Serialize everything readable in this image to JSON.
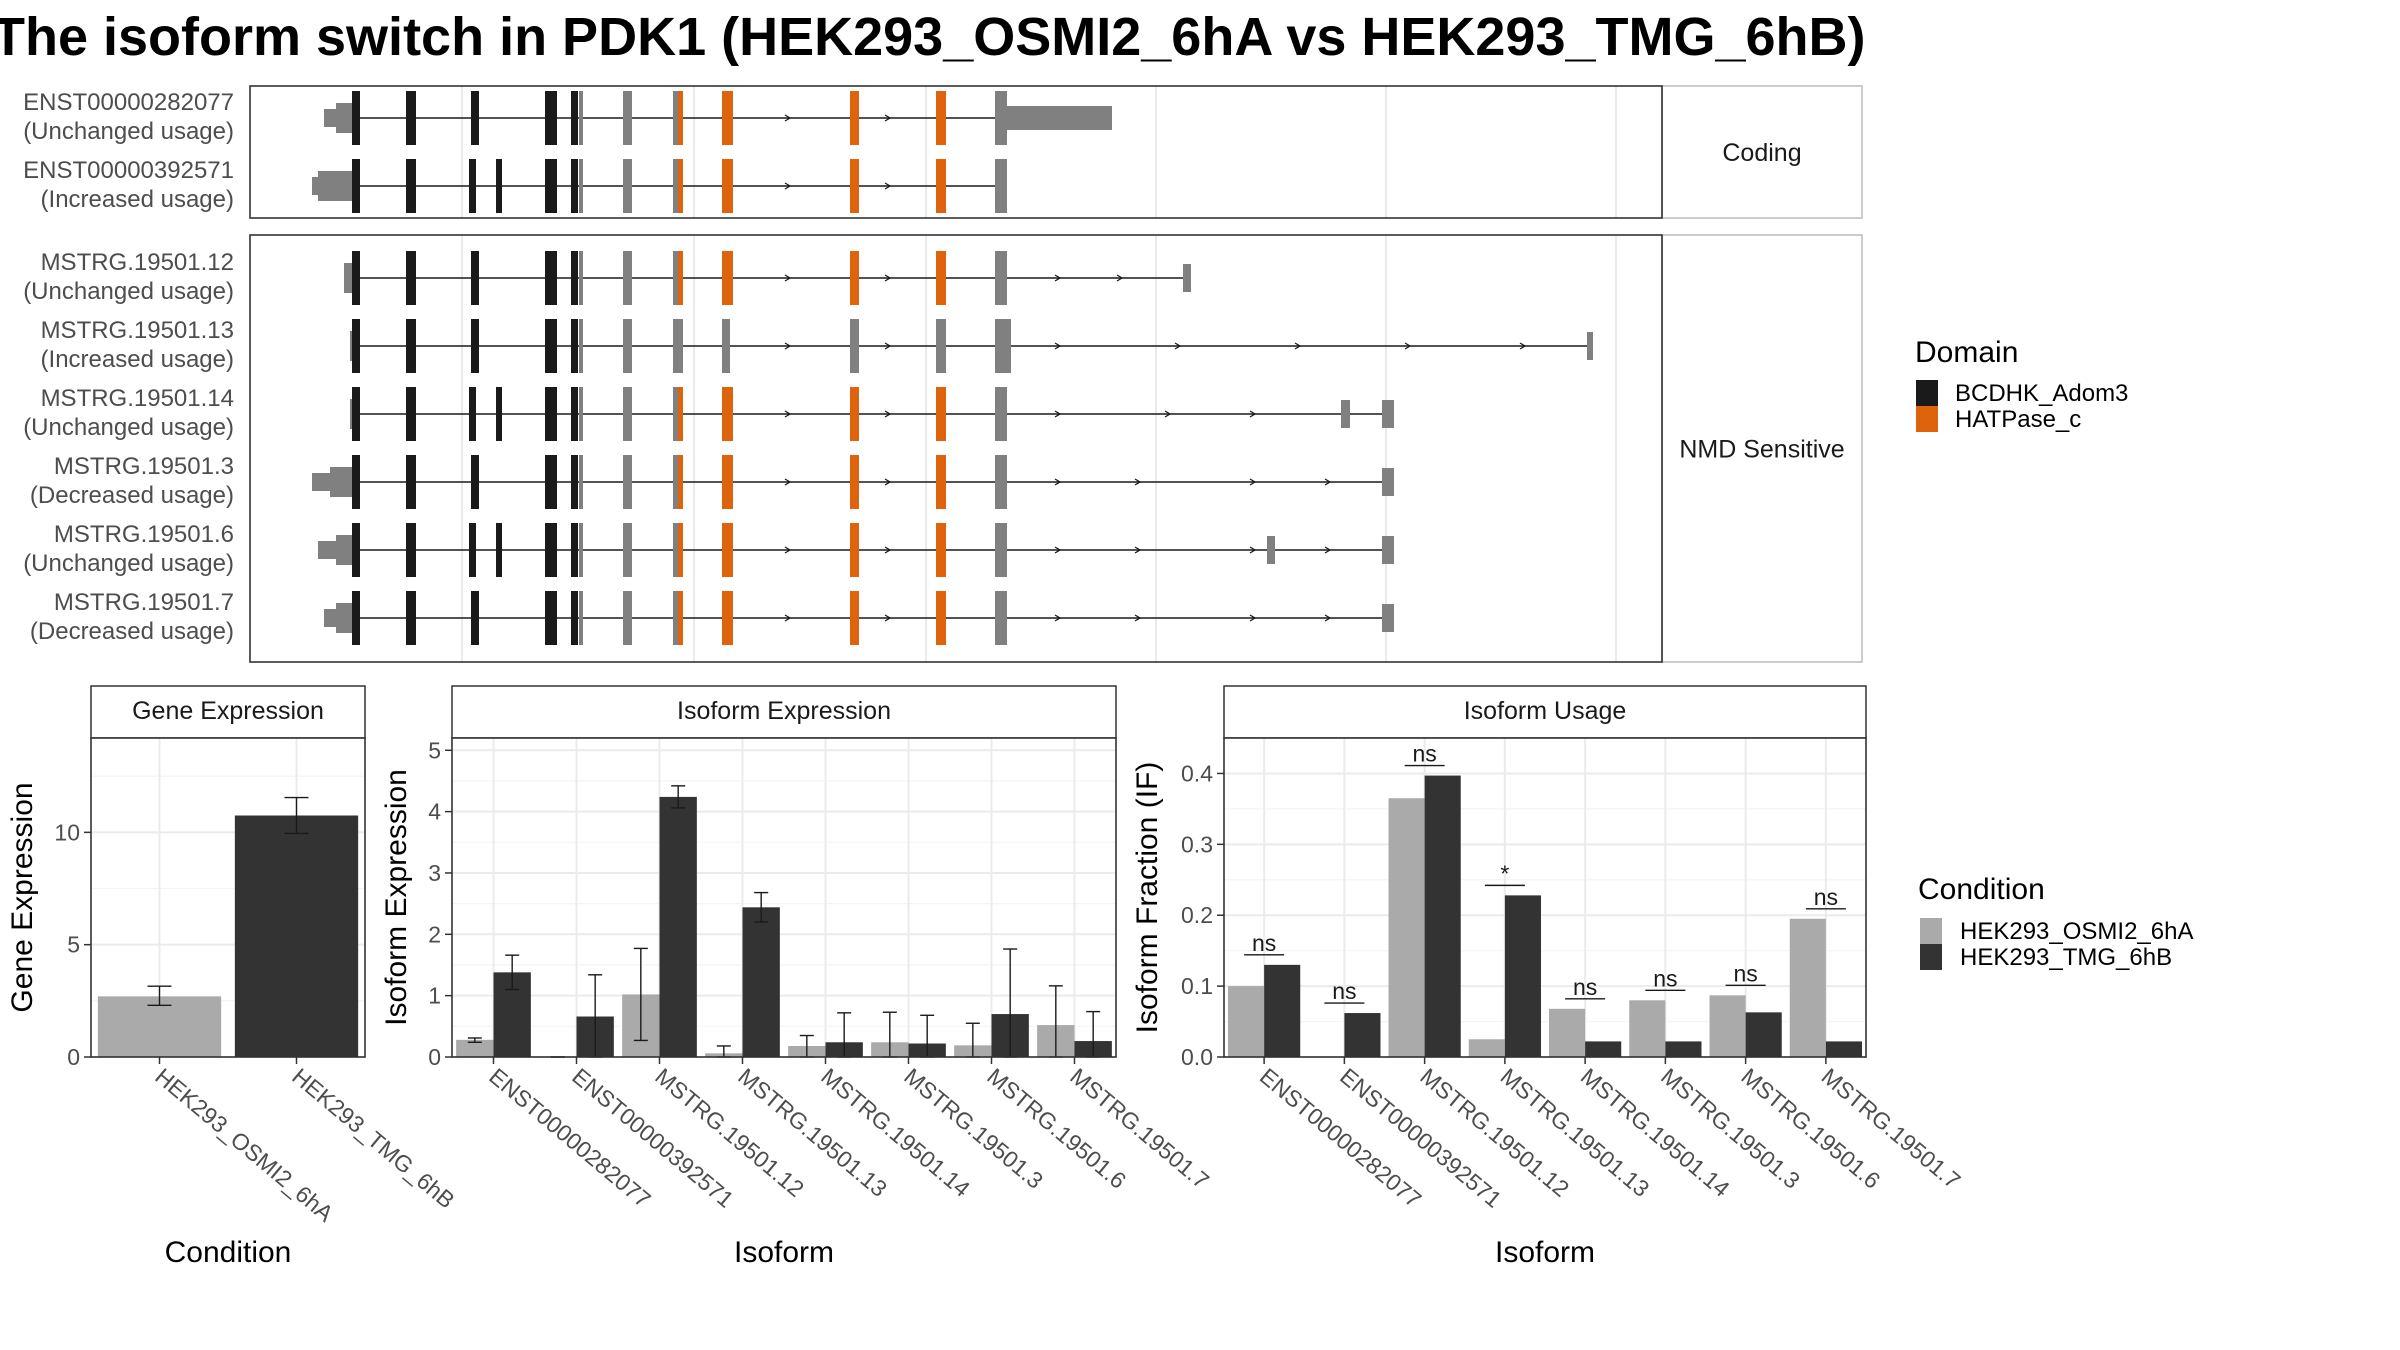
{
  "title": "The isoform switch in PDK1 (HEK293_OSMI2_6hA vs HEK293_TMG_6hB)",
  "colors": {
    "cond_a": "#aaaaaa",
    "cond_b": "#333333",
    "exon": "#808080",
    "bcdhk": "#1a1a1a",
    "hatpase": "#dd640c",
    "strip": "#ffffff",
    "grid": "#ebebeb"
  },
  "structure": {
    "panels": [
      {
        "label": "Coding",
        "transcripts": [
          {
            "id": "ENST00000282077",
            "usage": "(Unchanged usage)"
          },
          {
            "id": "ENST00000392571",
            "usage": "(Increased usage)"
          }
        ]
      },
      {
        "label": "NMD Sensitive",
        "transcripts": [
          {
            "id": "MSTRG.19501.12",
            "usage": "(Unchanged usage)"
          },
          {
            "id": "MSTRG.19501.13",
            "usage": "(Increased usage)"
          },
          {
            "id": "MSTRG.19501.14",
            "usage": "(Unchanged usage)"
          },
          {
            "id": "MSTRG.19501.3",
            "usage": "(Decreased usage)"
          },
          {
            "id": "MSTRG.19501.6",
            "usage": "(Unchanged usage)"
          },
          {
            "id": "MSTRG.19501.7",
            "usage": "(Decreased usage)"
          }
        ]
      }
    ]
  },
  "domain_legend": {
    "title": "Domain",
    "items": [
      {
        "label": "BCDHK_Adom3",
        "color": "#1a1a1a"
      },
      {
        "label": "HATPase_c",
        "color": "#dd640c"
      }
    ]
  },
  "condition_legend": {
    "title": "Condition",
    "items": [
      {
        "label": "HEK293_OSMI2_6hA",
        "color": "#aaaaaa"
      },
      {
        "label": "HEK293_TMG_6hB",
        "color": "#333333"
      }
    ]
  },
  "chart_data": [
    {
      "type": "bar",
      "title": "Gene Expression",
      "xlabel": "Condition",
      "ylabel": "Gene Expression",
      "categories": [
        "HEK293_OSMI2_6hA",
        "HEK293_TMG_6hB"
      ],
      "values": [
        2.7,
        10.75
      ],
      "errors": [
        [
          2.3,
          3.15
        ],
        [
          9.95,
          11.55
        ]
      ],
      "ylim": [
        0,
        14.2
      ],
      "yticks": [
        0,
        5,
        10
      ],
      "ytick_labels": [
        "0",
        "5",
        "10"
      ]
    },
    {
      "type": "bar",
      "title": "Isoform Expression",
      "xlabel": "Isoform",
      "ylabel": "Isoform Expression",
      "categories": [
        "ENST00000282077",
        "ENST00000392571",
        "MSTRG.19501.12",
        "MSTRG.19501.13",
        "MSTRG.19501.14",
        "MSTRG.19501.3",
        "MSTRG.19501.6",
        "MSTRG.19501.7"
      ],
      "series": [
        {
          "name": "HEK293_OSMI2_6hA",
          "values": [
            0.28,
            0.0,
            1.02,
            0.06,
            0.18,
            0.24,
            0.19,
            0.52
          ],
          "errors": [
            [
              0.24,
              0.31
            ],
            [
              0.0,
              0.0
            ],
            [
              0.27,
              1.77
            ],
            [
              0.0,
              0.18
            ],
            [
              0.0,
              0.35
            ],
            [
              0.0,
              0.73
            ],
            [
              0.0,
              0.55
            ],
            [
              0.0,
              1.16
            ]
          ]
        },
        {
          "name": "HEK293_TMG_6hB",
          "values": [
            1.38,
            0.66,
            4.24,
            2.44,
            0.24,
            0.22,
            0.7,
            0.26
          ],
          "errors": [
            [
              1.1,
              1.66
            ],
            [
              0.0,
              1.34
            ],
            [
              4.06,
              4.42
            ],
            [
              2.2,
              2.68
            ],
            [
              0.0,
              0.72
            ],
            [
              0.0,
              0.68
            ],
            [
              0.0,
              1.76
            ],
            [
              0.0,
              0.74
            ]
          ]
        }
      ],
      "ylim": [
        0,
        5.2
      ],
      "yticks": [
        0,
        1,
        2,
        3,
        4,
        5
      ],
      "ytick_labels": [
        "0",
        "1",
        "2",
        "3",
        "4",
        "5"
      ]
    },
    {
      "type": "bar",
      "title": "Isoform Usage",
      "xlabel": "Isoform",
      "ylabel": "Isoform Fraction (IF)",
      "categories": [
        "ENST00000282077",
        "ENST00000392571",
        "MSTRG.19501.12",
        "MSTRG.19501.13",
        "MSTRG.19501.14",
        "MSTRG.19501.3",
        "MSTRG.19501.6",
        "MSTRG.19501.7"
      ],
      "series": [
        {
          "name": "HEK293_OSMI2_6hA",
          "values": [
            0.1,
            0.0,
            0.365,
            0.025,
            0.068,
            0.08,
            0.087,
            0.195
          ]
        },
        {
          "name": "HEK293_TMG_6hB",
          "values": [
            0.13,
            0.062,
            0.397,
            0.228,
            0.022,
            0.022,
            0.063,
            0.022
          ]
        }
      ],
      "significance": [
        "ns",
        "ns",
        "ns",
        "*",
        "ns",
        "ns",
        "ns",
        "ns"
      ],
      "ylim": [
        0,
        0.45
      ],
      "yticks": [
        0,
        0.1,
        0.2,
        0.3,
        0.4
      ],
      "ytick_labels": [
        "0.0",
        "0.1",
        "0.2",
        "0.3",
        "0.4"
      ]
    }
  ]
}
